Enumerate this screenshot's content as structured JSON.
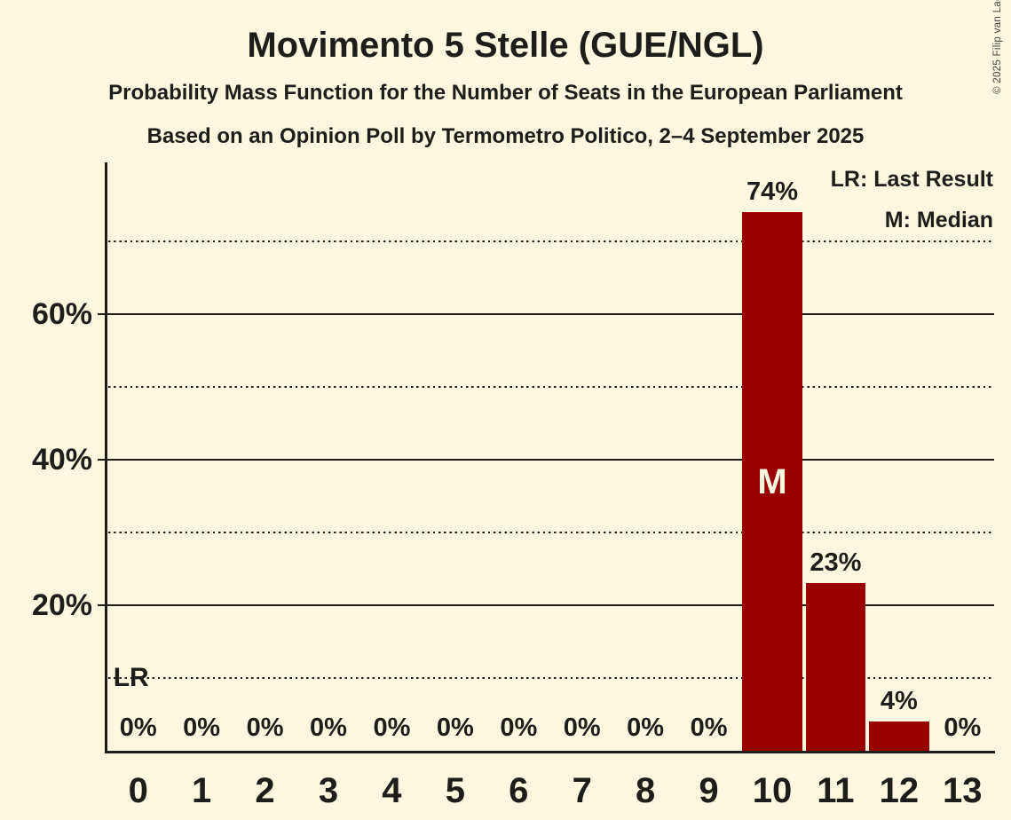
{
  "title": "Movimento 5 Stelle (GUE/NGL)",
  "subtitle_line1": "Probability Mass Function for the Number of Seats in the European Parliament",
  "subtitle_line2": "Based on an Opinion Poll by Termometro Politico, 2–4 September 2025",
  "copyright": "© 2025 Filip van Laenen",
  "legend": {
    "last_result": "LR: Last Result",
    "median": "M: Median"
  },
  "annotations": {
    "last_result_marker": "LR",
    "median_marker": "M"
  },
  "colors": {
    "background": "#FCF8DF",
    "bar": "#990000",
    "text": "#1D1D1B",
    "median_marker_text": "#FCF8DF",
    "copyright_text": "#44443E"
  },
  "chart_data": {
    "type": "bar",
    "title": "Movimento 5 Stelle (GUE/NGL)",
    "xlabel": "",
    "ylabel": "",
    "categories": [
      0,
      1,
      2,
      3,
      4,
      5,
      6,
      7,
      8,
      9,
      10,
      11,
      12,
      13
    ],
    "values": [
      0,
      0,
      0,
      0,
      0,
      0,
      0,
      0,
      0,
      0,
      74,
      23,
      4,
      0
    ],
    "value_labels": [
      "0%",
      "0%",
      "0%",
      "0%",
      "0%",
      "0%",
      "0%",
      "0%",
      "0%",
      "0%",
      "74%",
      "23%",
      "4%",
      "0%"
    ],
    "ylim": [
      0,
      81
    ],
    "ytick_values": [
      20,
      40,
      60
    ],
    "ytick_labels": [
      "20%",
      "40%",
      "60%"
    ],
    "gridlines_solid_pct": [
      20,
      40,
      60
    ],
    "gridlines_dotted_pct": [
      10,
      30,
      50,
      70
    ],
    "median_seats": 10,
    "last_result_seats": 0,
    "grid": true,
    "legend_position": "top-right"
  }
}
